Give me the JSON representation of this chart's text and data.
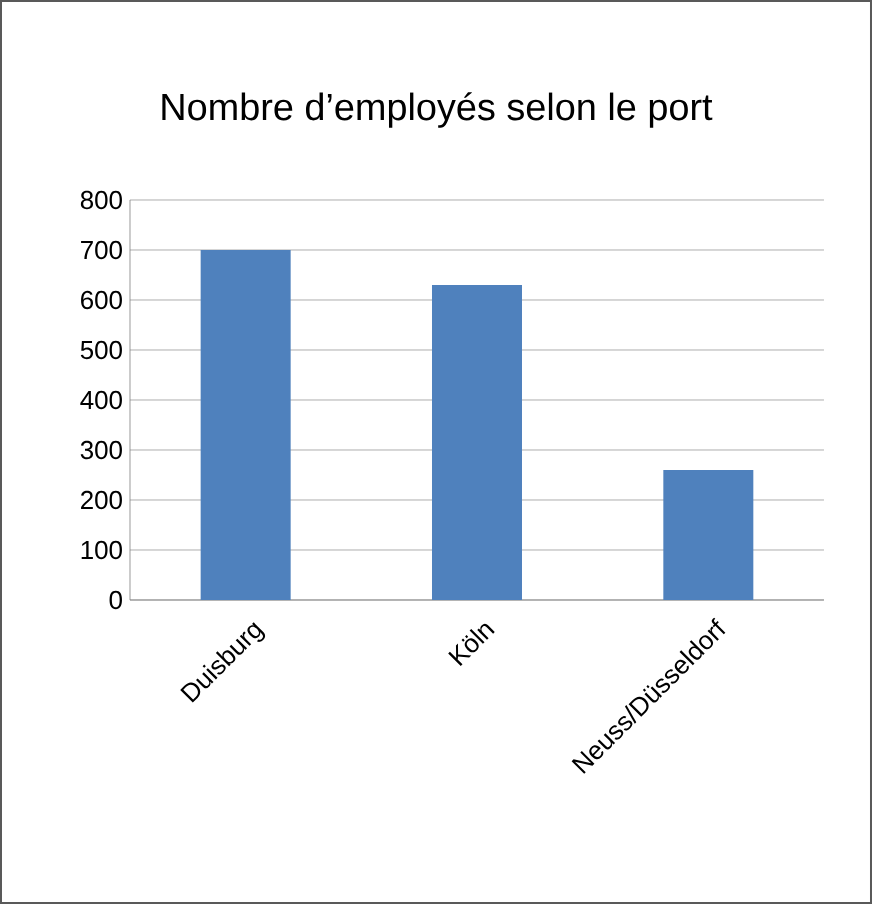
{
  "chart_data": {
    "type": "bar",
    "title": "Nombre d’employés selon le port",
    "categories": [
      "Duisburg",
      "Köln",
      "Neuss/Düsseldorf"
    ],
    "values": [
      700,
      630,
      260
    ],
    "color": "#4f81bd",
    "ylim": [
      0,
      800
    ],
    "yticks": [
      0,
      100,
      200,
      300,
      400,
      500,
      600,
      700,
      800
    ],
    "grid": "y"
  }
}
